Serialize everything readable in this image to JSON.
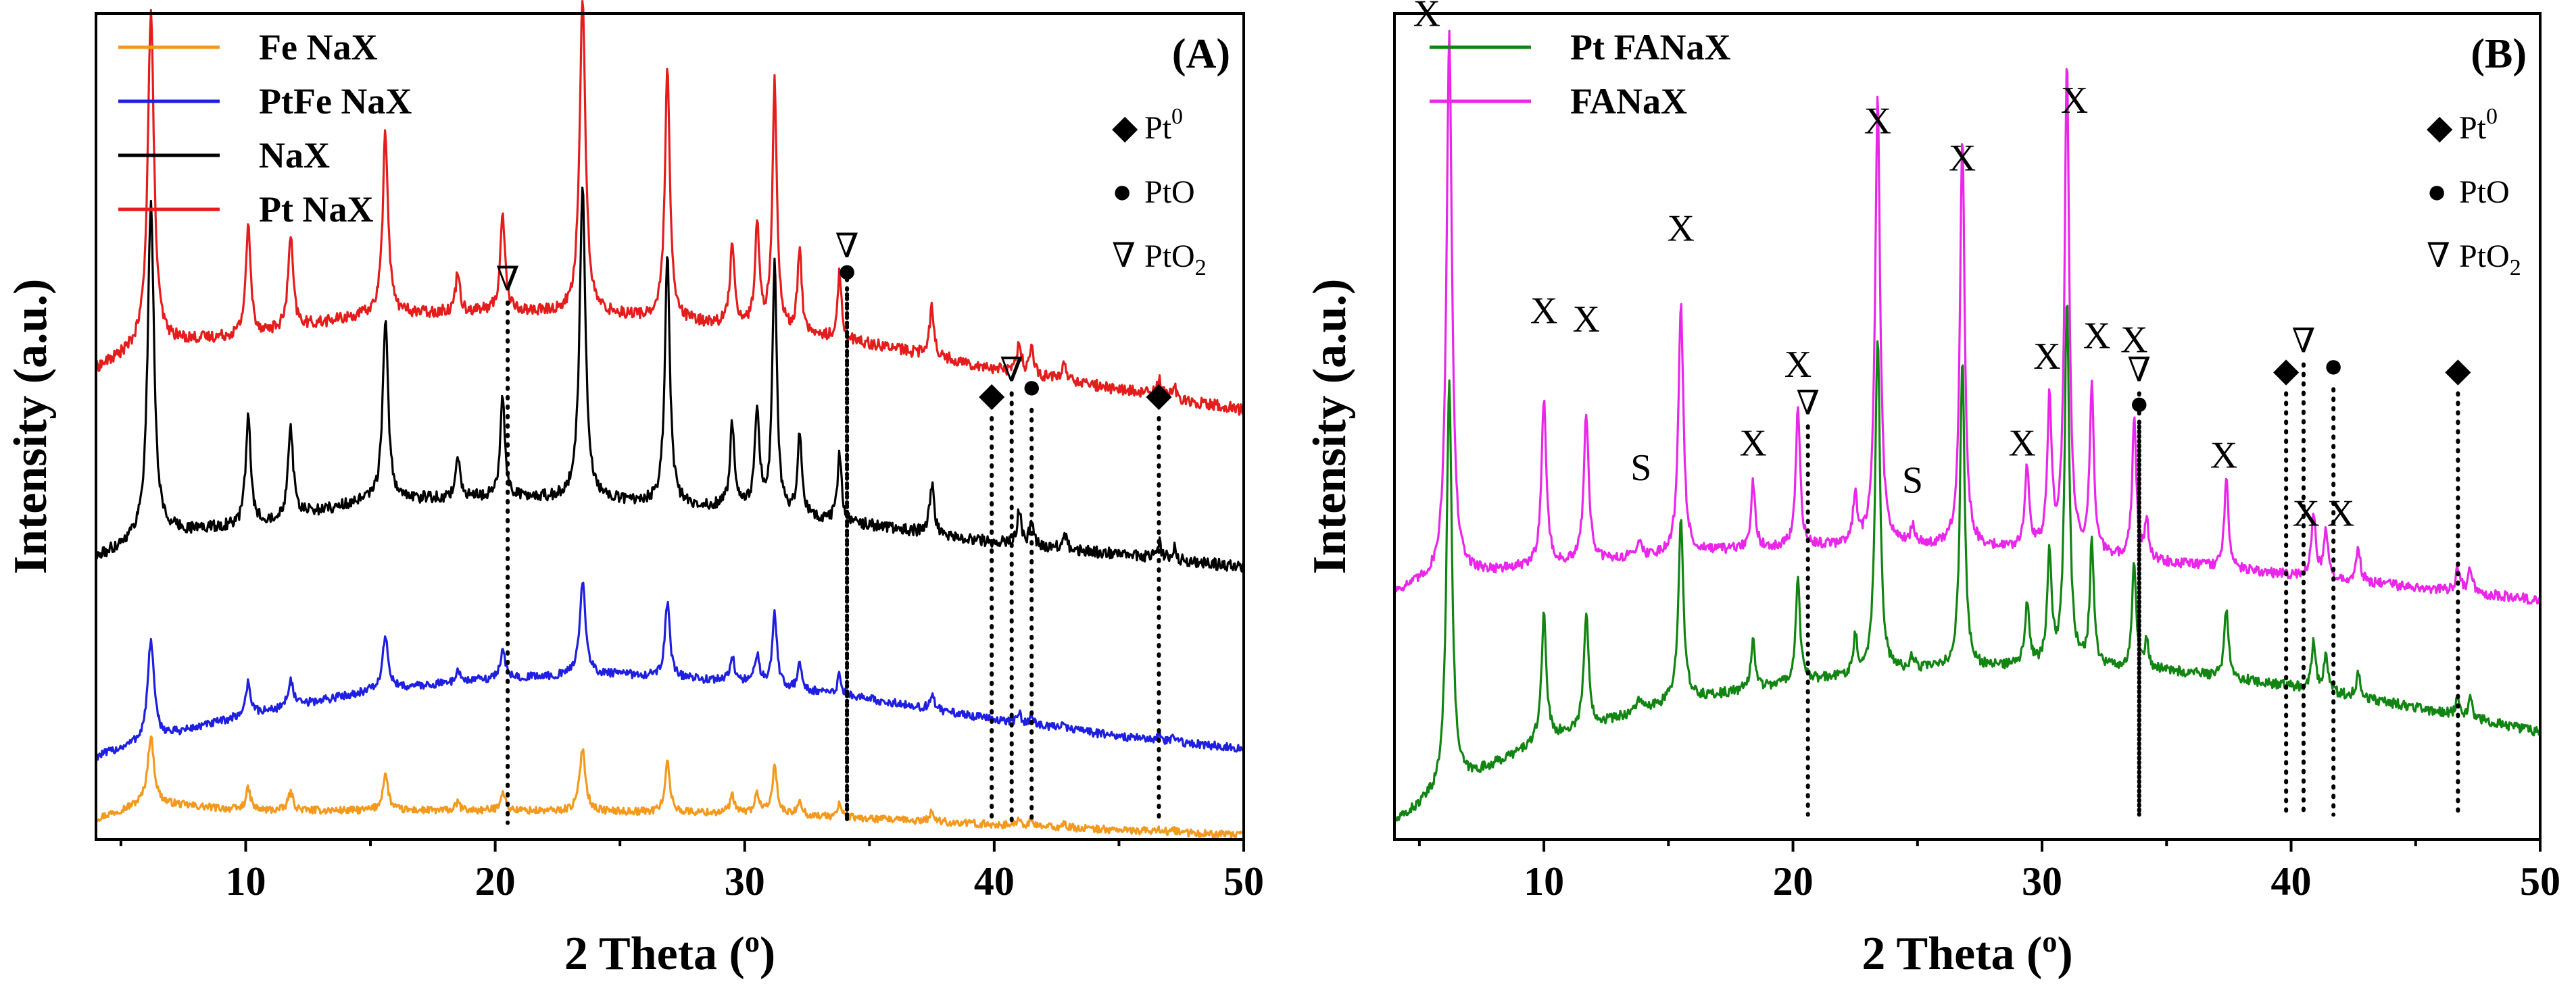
{
  "figure": {
    "panels": [
      {
        "id": "A",
        "label": "(A)",
        "xlabel": "2 Theta (o)",
        "ylabel": "Intensity (a.u.)"
      },
      {
        "id": "B",
        "label": "(B)",
        "xlabel": "2 Theta (o)",
        "ylabel": "Intensity (a.u.)"
      }
    ]
  },
  "chart_data": [
    {
      "type": "line",
      "panel": "A",
      "title": "(A)",
      "xlabel": "2 Theta (o)",
      "ylabel": "Intensity (a.u.)",
      "xlim": [
        4,
        50
      ],
      "ylim": [
        0,
        100
      ],
      "xticks": [
        10,
        20,
        30,
        40,
        50
      ],
      "yticks": [],
      "grid": false,
      "legend_position": "top-left",
      "legend": [
        {
          "name": "Fe NaX",
          "color": "#f39a1e"
        },
        {
          "name": "PtFe NaX",
          "color": "#1f1fe0"
        },
        {
          "name": "NaX",
          "color": "#000000"
        },
        {
          "name": "Pt NaX",
          "color": "#e51c1c"
        }
      ],
      "series": [
        {
          "name": "Fe NaX",
          "color": "#f39a1e",
          "baseline": [
            [
              4,
              2.5
            ],
            [
              6,
              4.5
            ],
            [
              10,
              3.5
            ],
            [
              20,
              3.5
            ],
            [
              30,
              3.2
            ],
            [
              40,
              1.8
            ],
            [
              50,
              0.5
            ]
          ],
          "amp_scale": 0.2,
          "noise": 0.45
        },
        {
          "name": "PtFe NaX",
          "color": "#1f1fe0",
          "baseline": [
            [
              4,
              10
            ],
            [
              6,
              12
            ],
            [
              10,
              15
            ],
            [
              15,
              18
            ],
            [
              20,
              19.5
            ],
            [
              25,
              20
            ],
            [
              30,
              19
            ],
            [
              35,
              17
            ],
            [
              40,
              14.5
            ],
            [
              45,
              12.5
            ],
            [
              50,
              11
            ]
          ],
          "amp_scale": 0.3,
          "noise": 0.5
        },
        {
          "name": "NaX",
          "color": "#000000",
          "baseline": [
            [
              4,
              34
            ],
            [
              6,
              37
            ],
            [
              10,
              38
            ],
            [
              15,
              41
            ],
            [
              20,
              41.5
            ],
            [
              25,
              41
            ],
            [
              30,
              40
            ],
            [
              35,
              38
            ],
            [
              40,
              36
            ],
            [
              45,
              34.5
            ],
            [
              50,
              33
            ]
          ],
          "amp_scale": 1.0,
          "noise": 0.7
        },
        {
          "name": "Pt NaX",
          "color": "#e51c1c",
          "baseline": [
            [
              4,
              57
            ],
            [
              6,
              60
            ],
            [
              10,
              61
            ],
            [
              15,
              63.5
            ],
            [
              20,
              64
            ],
            [
              25,
              63.5
            ],
            [
              30,
              62
            ],
            [
              35,
              60
            ],
            [
              40,
              57
            ],
            [
              45,
              54.5
            ],
            [
              50,
              52
            ]
          ],
          "amp_scale": 1.0,
          "noise": 0.7
        }
      ],
      "peaks": [
        {
          "x": 6.2,
          "h": 40,
          "w": 0.15
        },
        {
          "x": 10.1,
          "h": 13,
          "w": 0.12
        },
        {
          "x": 11.8,
          "h": 11,
          "w": 0.12
        },
        {
          "x": 15.6,
          "h": 22,
          "w": 0.13
        },
        {
          "x": 18.5,
          "h": 5,
          "w": 0.1
        },
        {
          "x": 20.3,
          "h": 12,
          "w": 0.11
        },
        {
          "x": 23.5,
          "h": 38,
          "w": 0.14
        },
        {
          "x": 26.9,
          "h": 30,
          "w": 0.12
        },
        {
          "x": 29.5,
          "h": 10,
          "w": 0.11
        },
        {
          "x": 30.5,
          "h": 12,
          "w": 0.11
        },
        {
          "x": 31.2,
          "h": 30,
          "w": 0.11
        },
        {
          "x": 32.2,
          "h": 10,
          "w": 0.1
        },
        {
          "x": 33.8,
          "h": 8,
          "w": 0.1
        },
        {
          "x": 37.5,
          "h": 6,
          "w": 0.11
        },
        {
          "x": 41.0,
          "h": 4,
          "w": 0.1
        },
        {
          "x": 41.5,
          "h": 3,
          "w": 0.1
        },
        {
          "x": 42.8,
          "h": 2,
          "w": 0.1
        },
        {
          "x": 46.6,
          "h": 2,
          "w": 0.1
        },
        {
          "x": 47.2,
          "h": 1.5,
          "w": 0.1
        }
      ],
      "phase_markers": [
        {
          "x": 20.5,
          "symbol": "∇",
          "y_top": 66
        },
        {
          "x": 34.1,
          "symbol": "∇",
          "y_top": 70
        },
        {
          "x": 34.1,
          "symbol": "●",
          "y_top": 67
        },
        {
          "x": 39.9,
          "symbol": "◆",
          "y_top": 52
        },
        {
          "x": 40.7,
          "symbol": "∇",
          "y_top": 55
        },
        {
          "x": 41.5,
          "symbol": "●",
          "y_top": 53
        },
        {
          "x": 46.6,
          "symbol": "◆",
          "y_top": 52
        }
      ],
      "phase_key": [
        {
          "symbol": "◆",
          "label": "Pt0"
        },
        {
          "symbol": "●",
          "label": "PtO"
        },
        {
          "symbol": "∇",
          "label": "PtO2"
        }
      ]
    },
    {
      "type": "line",
      "panel": "B",
      "title": "(B)",
      "xlabel": "2 Theta (o)",
      "ylabel": "Intensity (a.u.)",
      "xlim": [
        4,
        50
      ],
      "ylim": [
        0,
        100
      ],
      "xticks": [
        10,
        20,
        30,
        40,
        50
      ],
      "yticks": [],
      "grid": false,
      "legend_position": "top-left",
      "legend": [
        {
          "name": "Pt FANaX",
          "color": "#118511"
        },
        {
          "name": "FANaX",
          "color": "#e926e9"
        }
      ],
      "series": [
        {
          "name": "Pt FANaX",
          "color": "#118511",
          "baseline": [
            [
              4,
              2
            ],
            [
              6,
              6
            ],
            [
              10,
              12
            ],
            [
              15,
              16.5
            ],
            [
              20,
              19
            ],
            [
              25,
              20.5
            ],
            [
              30,
              21
            ],
            [
              35,
              20.5
            ],
            [
              40,
              18.5
            ],
            [
              45,
              16
            ],
            [
              50,
              13
            ]
          ],
          "amp_scale": 0.75,
          "noise": 0.6
        },
        {
          "name": "FANaX",
          "color": "#e926e9",
          "baseline": [
            [
              4,
              30
            ],
            [
              6,
              32
            ],
            [
              10,
              33
            ],
            [
              15,
              34.5
            ],
            [
              20,
              35.5
            ],
            [
              25,
              35.5
            ],
            [
              30,
              35
            ],
            [
              35,
              33.5
            ],
            [
              40,
              32
            ],
            [
              45,
              30.5
            ],
            [
              50,
              29
            ]
          ],
          "amp_scale": 1.0,
          "noise": 0.6
        }
      ],
      "peaks": [
        {
          "x": 6.2,
          "h": 66,
          "w": 0.13
        },
        {
          "x": 10.0,
          "h": 20,
          "w": 0.12
        },
        {
          "x": 11.7,
          "h": 18,
          "w": 0.12
        },
        {
          "x": 13.8,
          "h": 2,
          "w": 0.12
        },
        {
          "x": 15.5,
          "h": 30,
          "w": 0.12
        },
        {
          "x": 18.4,
          "h": 8,
          "w": 0.1
        },
        {
          "x": 20.2,
          "h": 17,
          "w": 0.1
        },
        {
          "x": 22.5,
          "h": 6,
          "w": 0.1
        },
        {
          "x": 23.4,
          "h": 54,
          "w": 0.12
        },
        {
          "x": 24.8,
          "h": 2,
          "w": 0.1
        },
        {
          "x": 26.8,
          "h": 50,
          "w": 0.11
        },
        {
          "x": 29.4,
          "h": 10,
          "w": 0.1
        },
        {
          "x": 30.3,
          "h": 18,
          "w": 0.1
        },
        {
          "x": 31.0,
          "h": 59,
          "w": 0.11
        },
        {
          "x": 32.0,
          "h": 20,
          "w": 0.1
        },
        {
          "x": 33.7,
          "h": 17,
          "w": 0.1
        },
        {
          "x": 34.2,
          "h": 5,
          "w": 0.08
        },
        {
          "x": 37.4,
          "h": 11,
          "w": 0.1
        },
        {
          "x": 40.9,
          "h": 8,
          "w": 0.1
        },
        {
          "x": 41.4,
          "h": 6,
          "w": 0.1
        },
        {
          "x": 42.7,
          "h": 4,
          "w": 0.1
        },
        {
          "x": 46.7,
          "h": 3,
          "w": 0.1
        },
        {
          "x": 47.2,
          "h": 3,
          "w": 0.1
        }
      ],
      "peak_labels": [
        {
          "x": 5.3,
          "y": 98.5,
          "text": "X"
        },
        {
          "x": 10.0,
          "y": 62.5,
          "text": "X"
        },
        {
          "x": 11.7,
          "y": 61.5,
          "text": "X"
        },
        {
          "x": 15.5,
          "y": 72.5,
          "text": "X"
        },
        {
          "x": 13.9,
          "y": 43.5,
          "text": "S"
        },
        {
          "x": 18.4,
          "y": 46.5,
          "text": "X"
        },
        {
          "x": 20.2,
          "y": 56,
          "text": "X"
        },
        {
          "x": 23.4,
          "y": 85.5,
          "text": "X"
        },
        {
          "x": 24.8,
          "y": 42,
          "text": "S"
        },
        {
          "x": 26.8,
          "y": 81,
          "text": "X"
        },
        {
          "x": 29.2,
          "y": 46.5,
          "text": "X"
        },
        {
          "x": 30.2,
          "y": 57,
          "text": "X"
        },
        {
          "x": 31.3,
          "y": 88,
          "text": "X"
        },
        {
          "x": 32.2,
          "y": 59.5,
          "text": "X"
        },
        {
          "x": 33.7,
          "y": 59,
          "text": "X"
        },
        {
          "x": 37.3,
          "y": 45,
          "text": "X"
        },
        {
          "x": 40.6,
          "y": 38,
          "text": "X"
        },
        {
          "x": 42.0,
          "y": 38,
          "text": "X"
        }
      ],
      "phase_markers": [
        {
          "x": 20.6,
          "symbol": "∇",
          "y_top": 51
        },
        {
          "x": 33.9,
          "symbol": "∇",
          "y_top": 55
        },
        {
          "x": 33.9,
          "symbol": "●",
          "y_top": 51
        },
        {
          "x": 39.8,
          "symbol": "◆",
          "y_top": 55
        },
        {
          "x": 40.5,
          "symbol": "∇",
          "y_top": 58.5
        },
        {
          "x": 41.7,
          "symbol": "●",
          "y_top": 55.5
        },
        {
          "x": 46.7,
          "symbol": "◆",
          "y_top": 55
        }
      ],
      "phase_key": [
        {
          "symbol": "◆",
          "label": "Pt0"
        },
        {
          "symbol": "●",
          "label": "PtO"
        },
        {
          "symbol": "∇",
          "label": "PtO2"
        }
      ]
    }
  ]
}
